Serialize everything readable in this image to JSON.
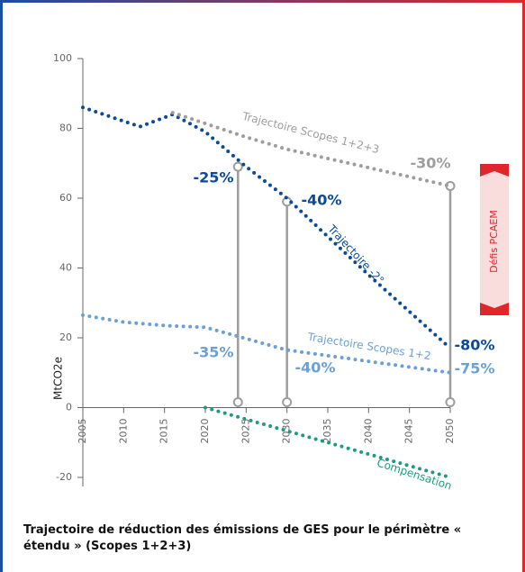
{
  "chart_data": {
    "type": "line",
    "y_label": "MtCO2e",
    "xlim": [
      2005,
      2050
    ],
    "xticks": [
      2005,
      2010,
      2015,
      2020,
      2025,
      2030,
      2035,
      2040,
      2045,
      2050
    ],
    "ylim": [
      -20,
      100
    ],
    "yticks": [
      -20,
      0,
      20,
      40,
      60,
      80,
      100
    ],
    "grid": false,
    "series": [
      {
        "name": "Trajectoire -2°",
        "color": "#0b4a9a",
        "x": [
          2005,
          2012,
          2016,
          2020,
          2025,
          2030,
          2040,
          2050
        ],
        "values": [
          86,
          80.5,
          84,
          79,
          69,
          60,
          38,
          17
        ]
      },
      {
        "name": "Trajectoire Scopes 1+2+3",
        "color": "#9d9d9d",
        "x": [
          2016,
          2025,
          2030,
          2050
        ],
        "values": [
          84.5,
          77.5,
          74,
          63.5
        ]
      },
      {
        "name": "Trajectoire Scopes 1+2",
        "color": "#6b9fd6",
        "x": [
          2005,
          2010,
          2015,
          2020,
          2030,
          2050
        ],
        "values": [
          26.5,
          24.5,
          23.5,
          23,
          16.5,
          10
        ]
      },
      {
        "name": "Compensation",
        "color": "#1e9a82",
        "x": [
          2020,
          2050
        ],
        "values": [
          0,
          -20
        ]
      }
    ],
    "milestones": [
      {
        "x": 2024,
        "y": 69
      },
      {
        "x": 2030,
        "y": 59
      },
      {
        "x": 2050,
        "y": 63.5
      }
    ],
    "annotations": [
      {
        "text": "-25%",
        "color": "#0b4a9a"
      },
      {
        "text": "-40%",
        "color": "#0b4a9a"
      },
      {
        "text": "-30%",
        "color": "#9d9d9d"
      },
      {
        "text": "-80%",
        "color": "#0b4a9a"
      },
      {
        "text": "-35%",
        "color": "#6b9fd6"
      },
      {
        "text": "-40%",
        "color": "#6b9fd6"
      },
      {
        "text": "-75%",
        "color": "#6b9fd6"
      }
    ],
    "band_label": "Défis PCAEM",
    "caption": "Trajectoire de réduction des émissions de GES pour le périmètre « étendu » (Scopes 1+2+3)"
  }
}
